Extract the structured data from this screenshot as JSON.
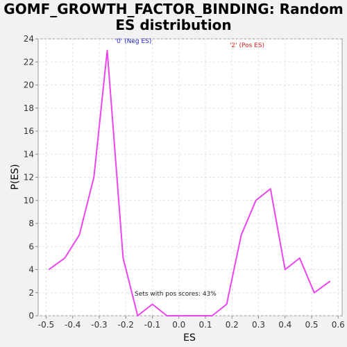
{
  "chart_data": {
    "type": "line",
    "title": "GOMF_GROWTH_FACTOR_BINDING: Random\nES distribution",
    "xlabel": "ES",
    "ylabel": "P(ES)",
    "xlim": [
      -0.53,
      0.615
    ],
    "ylim": [
      0,
      24
    ],
    "x_ticks": [
      -0.5,
      -0.4,
      -0.3,
      -0.2,
      -0.1,
      0.0,
      0.1,
      0.2,
      0.3,
      0.4,
      0.5,
      0.6
    ],
    "x_tick_labels": [
      "-0.5",
      "-0.4",
      "-0.3",
      "-0.2",
      "-0.1",
      "0.0",
      "0.1",
      "0.2",
      "0.3",
      "0.4",
      "0.5",
      "0.6"
    ],
    "y_ticks": [
      0,
      2,
      4,
      6,
      8,
      10,
      12,
      14,
      16,
      18,
      20,
      22,
      24
    ],
    "y_tick_labels": [
      "0",
      "2",
      "4",
      "6",
      "8",
      "10",
      "12",
      "14",
      "16",
      "18",
      "20",
      "22",
      "24"
    ],
    "grid": true,
    "series": [
      {
        "color": "#ee44ee",
        "x": [
          -0.49,
          -0.43,
          -0.375,
          -0.32,
          -0.27,
          -0.21,
          -0.155,
          -0.1,
          -0.045,
          0.015,
          0.07,
          0.125,
          0.18,
          0.235,
          0.29,
          0.345,
          0.4,
          0.455,
          0.51,
          0.57
        ],
        "y": [
          4,
          5,
          7,
          12,
          23,
          5,
          0,
          1,
          0,
          0,
          0,
          0,
          1,
          7,
          10,
          11,
          4,
          5,
          2,
          3
        ]
      }
    ],
    "annotations": [
      {
        "text": "'0' (Neg ES)",
        "color": "#2222cc"
      },
      {
        "text": "'2' (Pos ES)",
        "color": "#dd2222"
      },
      {
        "text": "Sets with pos scores: 43%",
        "color": "#222222"
      }
    ]
  }
}
